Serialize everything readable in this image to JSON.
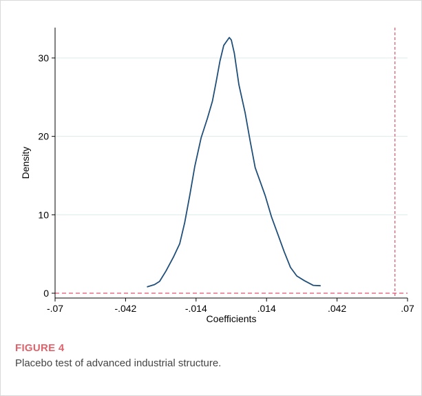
{
  "chart_data": {
    "type": "line",
    "title": "",
    "xlabel": "Coefficients",
    "ylabel": "Density",
    "xlim": [
      -0.07,
      0.07
    ],
    "ylim": [
      0,
      33
    ],
    "x_ticks": [
      -0.07,
      -0.042,
      -0.014,
      0.014,
      0.042,
      0.07
    ],
    "x_tick_labels": [
      "-.07",
      "-.042",
      "-.014",
      ".014",
      ".042",
      ".07"
    ],
    "y_ticks": [
      0,
      10,
      20,
      30
    ],
    "y_tick_labels": [
      "0",
      "10",
      "20",
      "30"
    ],
    "grid": "horizontal",
    "series": [
      {
        "color": "#1f4e79",
        "x": [
          -0.0335,
          -0.0305,
          -0.0285,
          -0.026,
          -0.023,
          -0.0205,
          -0.0185,
          -0.0165,
          -0.0145,
          -0.012,
          -0.0095,
          -0.0075,
          -0.006,
          -0.0045,
          -0.003,
          -0.0017,
          -0.0008,
          0.0,
          0.0012,
          0.003,
          0.0055,
          0.0075,
          0.0095,
          0.0115,
          0.0135,
          0.016,
          0.0185,
          0.021,
          0.0235,
          0.026,
          0.029,
          0.0325,
          0.0355
        ],
        "y": [
          0.8,
          1.1,
          1.5,
          2.8,
          4.6,
          6.3,
          9.0,
          12.5,
          16.2,
          19.8,
          22.3,
          24.5,
          27.0,
          29.6,
          31.6,
          32.2,
          32.6,
          32.3,
          30.6,
          26.6,
          23.0,
          19.4,
          16.0,
          14.2,
          12.4,
          9.7,
          7.5,
          5.3,
          3.3,
          2.2,
          1.6,
          1.0,
          0.95
        ]
      }
    ],
    "reference_lines": [
      {
        "axis": "y",
        "value": 0,
        "style": "dashed",
        "color": "#e0506a"
      },
      {
        "axis": "x",
        "value": 0.065,
        "style": "dashed",
        "color": "#e0506a"
      }
    ]
  },
  "figure": {
    "label": "FIGURE 4",
    "caption": "Placebo test of advanced industrial structure."
  },
  "colors": {
    "curve": "#1f4e79",
    "reference": "#e0506a",
    "grid": "#dcebeb",
    "figure_label": "#e0626b",
    "caption": "#444444"
  }
}
